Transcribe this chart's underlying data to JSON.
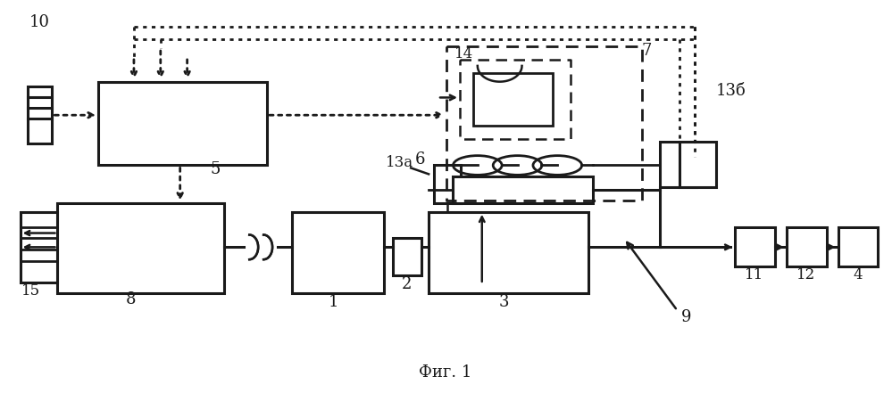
{
  "title": "Фиг. 1",
  "bg_color": "#ffffff",
  "line_color": "#1a1a1a",
  "title_fontsize": 13,
  "label_fontsize": 12
}
